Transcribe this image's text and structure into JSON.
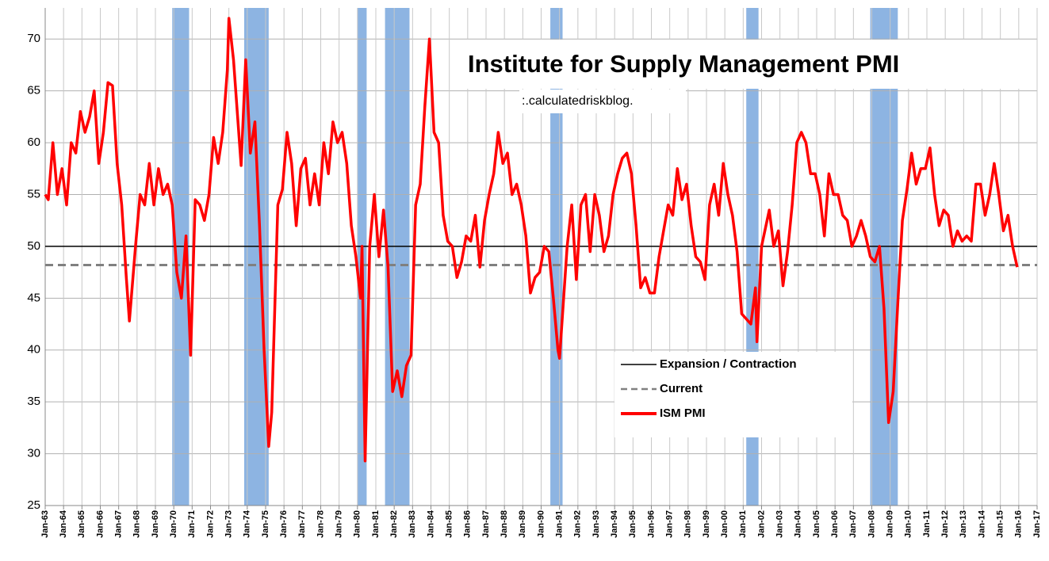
{
  "chart_data": {
    "type": "line",
    "title": "Institute for Supply Management PMI",
    "watermark": ":.calculatedriskblog.",
    "xlim": [
      "1963-01",
      "2017-01"
    ],
    "ylim": [
      25,
      73
    ],
    "yticks": [
      25,
      30,
      35,
      40,
      45,
      50,
      55,
      60,
      65,
      70
    ],
    "xticks": [
      {
        "value": "1963-01",
        "label": "Jan-63"
      },
      {
        "value": "1964-01",
        "label": "Jan-64"
      },
      {
        "value": "1965-01",
        "label": "Jan-65"
      },
      {
        "value": "1966-01",
        "label": "Jan-66"
      },
      {
        "value": "1967-01",
        "label": "Jan-67"
      },
      {
        "value": "1968-01",
        "label": "Jan-68"
      },
      {
        "value": "1969-01",
        "label": "Jan-69"
      },
      {
        "value": "1970-01",
        "label": "Jan-70"
      },
      {
        "value": "1971-01",
        "label": "Jan-71"
      },
      {
        "value": "1972-01",
        "label": "Jan-72"
      },
      {
        "value": "1973-01",
        "label": "Jan-73"
      },
      {
        "value": "1974-01",
        "label": "Jan-74"
      },
      {
        "value": "1975-01",
        "label": "Jan-75"
      },
      {
        "value": "1976-01",
        "label": "Jan-76"
      },
      {
        "value": "1977-01",
        "label": "Jan-77"
      },
      {
        "value": "1978-01",
        "label": "Jan-78"
      },
      {
        "value": "1979-01",
        "label": "Jan-79"
      },
      {
        "value": "1980-01",
        "label": "Jan-80"
      },
      {
        "value": "1981-01",
        "label": "Jan-81"
      },
      {
        "value": "1982-01",
        "label": "Jan-82"
      },
      {
        "value": "1983-01",
        "label": "Jan-83"
      },
      {
        "value": "1984-01",
        "label": "Jan-84"
      },
      {
        "value": "1985-01",
        "label": "Jan-85"
      },
      {
        "value": "1986-01",
        "label": "Jan-86"
      },
      {
        "value": "1987-01",
        "label": "Jan-87"
      },
      {
        "value": "1988-01",
        "label": "Jan-88"
      },
      {
        "value": "1989-01",
        "label": "Jan-89"
      },
      {
        "value": "1990-01",
        "label": "Jan-90"
      },
      {
        "value": "1991-01",
        "label": "Jan-91"
      },
      {
        "value": "1992-01",
        "label": "Jan-92"
      },
      {
        "value": "1993-01",
        "label": "Jan-93"
      },
      {
        "value": "1994-01",
        "label": "Jan-94"
      },
      {
        "value": "1995-01",
        "label": "Jan-95"
      },
      {
        "value": "1996-01",
        "label": "Jan-96"
      },
      {
        "value": "1997-01",
        "label": "Jan-97"
      },
      {
        "value": "1998-01",
        "label": "Jan-98"
      },
      {
        "value": "1999-01",
        "label": "Jan-99"
      },
      {
        "value": "2000-01",
        "label": "Jan-00"
      },
      {
        "value": "2001-01",
        "label": "Jan-01"
      },
      {
        "value": "2002-01",
        "label": "Jan-02"
      },
      {
        "value": "2003-01",
        "label": "Jan-03"
      },
      {
        "value": "2004-01",
        "label": "Jan-04"
      },
      {
        "value": "2005-01",
        "label": "Jan-05"
      },
      {
        "value": "2006-01",
        "label": "Jan-06"
      },
      {
        "value": "2007-01",
        "label": "Jan-07"
      },
      {
        "value": "2008-01",
        "label": "Jan-08"
      },
      {
        "value": "2009-01",
        "label": "Jan-09"
      },
      {
        "value": "2010-01",
        "label": "Jan-10"
      },
      {
        "value": "2011-01",
        "label": "Jan-11"
      },
      {
        "value": "2012-01",
        "label": "Jan-12"
      },
      {
        "value": "2013-01",
        "label": "Jan-13"
      },
      {
        "value": "2014-01",
        "label": "Jan-14"
      },
      {
        "value": "2015-01",
        "label": "Jan-15"
      },
      {
        "value": "2016-01",
        "label": "Jan-16"
      },
      {
        "value": "2017-01",
        "label": "Jan-17"
      }
    ],
    "grid": true,
    "recessions": [
      [
        "1969-12",
        "1970-11"
      ],
      [
        "1973-11",
        "1975-03"
      ],
      [
        "1980-01",
        "1980-07"
      ],
      [
        "1981-07",
        "1982-11"
      ],
      [
        "1990-07",
        "1991-03"
      ],
      [
        "2001-03",
        "2001-11"
      ],
      [
        "2007-12",
        "2009-06"
      ]
    ],
    "recession_color": "#8db4e2",
    "reference_lines": [
      {
        "name": "Expansion / Contraction",
        "value": 50,
        "color": "#000000",
        "dashed": false
      },
      {
        "name": "Current",
        "value": 48.2,
        "color": "#808080",
        "dashed": true
      }
    ],
    "x": [
      "1963-01",
      "1963-03",
      "1963-06",
      "1963-09",
      "1963-12",
      "1964-03",
      "1964-06",
      "1964-09",
      "1964-12",
      "1965-03",
      "1965-06",
      "1965-09",
      "1965-12",
      "1966-03",
      "1966-06",
      "1966-09",
      "1966-12",
      "1967-03",
      "1967-06",
      "1967-08",
      "1967-12",
      "1968-03",
      "1968-06",
      "1968-09",
      "1968-12",
      "1969-03",
      "1969-06",
      "1969-09",
      "1969-12",
      "1970-03",
      "1970-06",
      "1970-09",
      "1970-12",
      "1971-03",
      "1971-06",
      "1971-09",
      "1971-12",
      "1972-03",
      "1972-06",
      "1972-09",
      "1972-12",
      "1973-01",
      "1973-04",
      "1973-09",
      "1973-12",
      "1974-03",
      "1974-06",
      "1974-09",
      "1974-12",
      "1975-03",
      "1975-05",
      "1975-09",
      "1975-12",
      "1976-03",
      "1976-06",
      "1976-09",
      "1976-12",
      "1977-03",
      "1977-06",
      "1977-09",
      "1977-12",
      "1978-03",
      "1978-06",
      "1978-09",
      "1978-12",
      "1979-03",
      "1979-06",
      "1979-09",
      "1979-12",
      "1980-03",
      "1980-04",
      "1980-06",
      "1980-09",
      "1980-12",
      "1981-03",
      "1981-06",
      "1981-09",
      "1981-12",
      "1982-03",
      "1982-06",
      "1982-09",
      "1982-12",
      "1983-03",
      "1983-06",
      "1983-09",
      "1983-12",
      "1984-03",
      "1984-06",
      "1984-09",
      "1984-12",
      "1985-03",
      "1985-06",
      "1985-09",
      "1985-12",
      "1986-03",
      "1986-06",
      "1986-09",
      "1986-12",
      "1987-03",
      "1987-06",
      "1987-09",
      "1987-12",
      "1988-03",
      "1988-06",
      "1988-09",
      "1988-12",
      "1989-03",
      "1989-06",
      "1989-09",
      "1989-12",
      "1990-03",
      "1990-06",
      "1990-09",
      "1990-12",
      "1991-01",
      "1991-06",
      "1991-09",
      "1991-12",
      "1992-03",
      "1992-06",
      "1992-09",
      "1992-12",
      "1993-03",
      "1993-06",
      "1993-09",
      "1993-12",
      "1994-03",
      "1994-06",
      "1994-09",
      "1994-12",
      "1995-03",
      "1995-06",
      "1995-09",
      "1995-12",
      "1996-03",
      "1996-06",
      "1996-09",
      "1996-12",
      "1997-03",
      "1997-06",
      "1997-09",
      "1997-12",
      "1998-03",
      "1998-06",
      "1998-09",
      "1998-12",
      "1999-03",
      "1999-06",
      "1999-09",
      "1999-12",
      "2000-03",
      "2000-06",
      "2000-09",
      "2000-12",
      "2001-03",
      "2001-06",
      "2001-09",
      "2001-10",
      "2002-01",
      "2002-06",
      "2002-09",
      "2002-12",
      "2003-03",
      "2003-06",
      "2003-09",
      "2003-12",
      "2004-03",
      "2004-06",
      "2004-09",
      "2004-12",
      "2005-03",
      "2005-06",
      "2005-09",
      "2005-12",
      "2006-03",
      "2006-06",
      "2006-09",
      "2006-12",
      "2007-03",
      "2007-06",
      "2007-09",
      "2007-12",
      "2008-03",
      "2008-06",
      "2008-09",
      "2008-12",
      "2009-03",
      "2009-06",
      "2009-09",
      "2009-12",
      "2010-03",
      "2010-06",
      "2010-09",
      "2010-12",
      "2011-03",
      "2011-06",
      "2011-09",
      "2011-12",
      "2012-03",
      "2012-06",
      "2012-09",
      "2012-12",
      "2013-03",
      "2013-06",
      "2013-09",
      "2013-12",
      "2014-03",
      "2014-06",
      "2014-09",
      "2014-12",
      "2015-03",
      "2015-06",
      "2015-09",
      "2015-12"
    ],
    "series": [
      {
        "name": "ISM PMI",
        "color": "#ff0000",
        "values": [
          55,
          54.5,
          60,
          55,
          57.5,
          54,
          60,
          59,
          63,
          61,
          62.5,
          65,
          58,
          61,
          65.8,
          65.5,
          58,
          54,
          47,
          42.8,
          50,
          55,
          54,
          58,
          54,
          57.5,
          55,
          56,
          54,
          47.5,
          45,
          51,
          39.5,
          54.5,
          54,
          52.5,
          55,
          60.5,
          58,
          61,
          67,
          72,
          68,
          57.8,
          68,
          59,
          62,
          52,
          40,
          30.7,
          34,
          54,
          55.5,
          61,
          58,
          52,
          57.5,
          58.5,
          54,
          57,
          54,
          60,
          57,
          62,
          60,
          61,
          58,
          52,
          49,
          45,
          50,
          29.3,
          50,
          55,
          49,
          53.5,
          48,
          36,
          38,
          35.5,
          38.5,
          39.5,
          54,
          56,
          63.5,
          70,
          61,
          60,
          53,
          50.5,
          50,
          47,
          48.5,
          51,
          50.5,
          53,
          48,
          52.5,
          55,
          57,
          61,
          58,
          59,
          55,
          56,
          54,
          51,
          45.5,
          47,
          47.5,
          50,
          49.5,
          45,
          40,
          39.2,
          50,
          54,
          46.8,
          54,
          55,
          49.5,
          55,
          53,
          49.5,
          51,
          55,
          57,
          58.5,
          59,
          57,
          52,
          46,
          47,
          45.5,
          45.5,
          49,
          51.5,
          54,
          53,
          57.5,
          54.5,
          56,
          52,
          49,
          48.5,
          46.8,
          54,
          56,
          53,
          58,
          55,
          53,
          49.5,
          43.5,
          43,
          42.5,
          46,
          40.8,
          50,
          53.5,
          50,
          51.5,
          46.2,
          49.5,
          54,
          60,
          61,
          60,
          57,
          57,
          55,
          51,
          57,
          55,
          55,
          53,
          52.5,
          50,
          51,
          52.5,
          51,
          49,
          48.5,
          50,
          44,
          33,
          36,
          44.5,
          52.5,
          55.5,
          59,
          56,
          57.5,
          57.5,
          59.5,
          55,
          52,
          53.5,
          53,
          50,
          51.5,
          50.5,
          51,
          50.5,
          56,
          56,
          53,
          55,
          58,
          55,
          51.5,
          53,
          50,
          48
        ]
      }
    ]
  }
}
